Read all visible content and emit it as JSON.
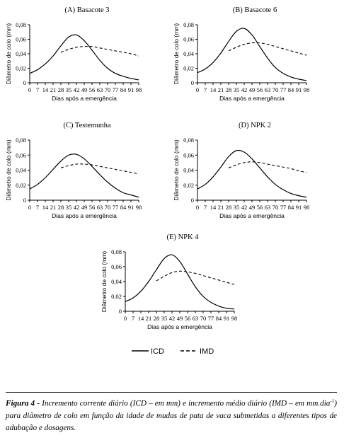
{
  "chart_data": [
    {
      "type": "line",
      "title": "(A) Basacote 3",
      "xlabel": "Dias após a emergência",
      "ylabel": "Diâmetro de colo (mm)",
      "ylim": [
        0,
        0.08
      ],
      "yticks": [
        "0",
        "0,02",
        "0,04",
        "0,06",
        "0,08"
      ],
      "xticks": [
        "0",
        "7",
        "14",
        "21",
        "28",
        "35",
        "42",
        "49",
        "56",
        "63",
        "70",
        "77",
        "84",
        "91",
        "98"
      ],
      "series": [
        {
          "name": "ICD",
          "style": "solid",
          "x": [
            0,
            7,
            14,
            21,
            28,
            35,
            42,
            49,
            56,
            63,
            70,
            77,
            84,
            91,
            98
          ],
          "y": [
            0.013,
            0.018,
            0.026,
            0.037,
            0.051,
            0.063,
            0.066,
            0.058,
            0.045,
            0.031,
            0.02,
            0.013,
            0.009,
            0.006,
            0.004
          ]
        },
        {
          "name": "IMD",
          "style": "dashed",
          "x": [
            28,
            35,
            42,
            49,
            56,
            63,
            70,
            77,
            84,
            91,
            98
          ],
          "y": [
            0.042,
            0.046,
            0.049,
            0.05,
            0.05,
            0.048,
            0.046,
            0.044,
            0.042,
            0.04,
            0.037
          ]
        }
      ]
    },
    {
      "type": "line",
      "title": "(B) Basacote 6",
      "xlabel": "Dias após a emergência",
      "ylabel": "Diâmetro de colo (mm)",
      "ylim": [
        0,
        0.08
      ],
      "yticks": [
        "0",
        "0,02",
        "0,04",
        "0,06",
        "0,08"
      ],
      "xticks": [
        "0",
        "7",
        "14",
        "21",
        "28",
        "35",
        "42",
        "49",
        "56",
        "63",
        "70",
        "77",
        "84",
        "91",
        "98"
      ],
      "series": [
        {
          "name": "ICD",
          "style": "solid",
          "x": [
            0,
            7,
            14,
            21,
            28,
            35,
            42,
            49,
            56,
            63,
            70,
            77,
            84,
            91,
            98
          ],
          "y": [
            0.014,
            0.019,
            0.028,
            0.041,
            0.057,
            0.071,
            0.075,
            0.066,
            0.05,
            0.034,
            0.021,
            0.013,
            0.008,
            0.005,
            0.003
          ]
        },
        {
          "name": "IMD",
          "style": "dashed",
          "x": [
            28,
            35,
            42,
            49,
            56,
            63,
            70,
            77,
            84,
            91,
            98
          ],
          "y": [
            0.044,
            0.049,
            0.053,
            0.055,
            0.055,
            0.053,
            0.05,
            0.047,
            0.044,
            0.041,
            0.038
          ]
        }
      ]
    },
    {
      "type": "line",
      "title": "(C) Testemunha",
      "xlabel": "Dias após a emergência",
      "ylabel": "Diâmetro de colo (mm)",
      "ylim": [
        0,
        0.08
      ],
      "yticks": [
        "0",
        "0,02",
        "0,04",
        "0,06",
        "0,08"
      ],
      "xticks": [
        "0",
        "7",
        "14",
        "21",
        "28",
        "35",
        "42",
        "49",
        "56",
        "63",
        "70",
        "77",
        "84",
        "91",
        "98"
      ],
      "series": [
        {
          "name": "ICD",
          "style": "solid",
          "x": [
            0,
            7,
            14,
            21,
            28,
            35,
            42,
            49,
            56,
            63,
            70,
            77,
            84,
            91,
            98
          ],
          "y": [
            0.015,
            0.021,
            0.03,
            0.041,
            0.052,
            0.06,
            0.061,
            0.055,
            0.045,
            0.034,
            0.024,
            0.016,
            0.01,
            0.007,
            0.004
          ]
        },
        {
          "name": "IMD",
          "style": "dashed",
          "x": [
            28,
            35,
            42,
            49,
            56,
            63,
            70,
            77,
            84,
            91,
            98
          ],
          "y": [
            0.043,
            0.046,
            0.048,
            0.048,
            0.047,
            0.045,
            0.043,
            0.041,
            0.039,
            0.037,
            0.035
          ]
        }
      ]
    },
    {
      "type": "line",
      "title": "(D) NPK 2",
      "xlabel": "Dias após a emergência",
      "ylabel": "Diâmetro de colo (mm)",
      "ylim": [
        0,
        0.08
      ],
      "yticks": [
        "0",
        "0,02",
        "0,04",
        "0,06",
        "0,08"
      ],
      "xticks": [
        "0",
        "7",
        "14",
        "21",
        "28",
        "35",
        "42",
        "49",
        "56",
        "63",
        "70",
        "77",
        "84",
        "91",
        "98"
      ],
      "series": [
        {
          "name": "ICD",
          "style": "solid",
          "x": [
            0,
            7,
            14,
            21,
            28,
            35,
            42,
            49,
            56,
            63,
            70,
            77,
            84,
            91,
            98
          ],
          "y": [
            0.015,
            0.021,
            0.031,
            0.044,
            0.058,
            0.066,
            0.064,
            0.055,
            0.043,
            0.031,
            0.021,
            0.014,
            0.009,
            0.006,
            0.004
          ]
        },
        {
          "name": "IMD",
          "style": "dashed",
          "x": [
            28,
            35,
            42,
            49,
            56,
            63,
            70,
            77,
            84,
            91,
            98
          ],
          "y": [
            0.043,
            0.047,
            0.05,
            0.051,
            0.05,
            0.048,
            0.046,
            0.044,
            0.042,
            0.039,
            0.037
          ]
        }
      ]
    },
    {
      "type": "line",
      "title": "(E) NPK 4",
      "xlabel": "Dias após a emergência",
      "ylabel": "Diâmetro de colo (mm)",
      "ylim": [
        0,
        0.08
      ],
      "yticks": [
        "0",
        "0,02",
        "0,04",
        "0,06",
        "0,08"
      ],
      "xticks": [
        "0",
        "7",
        "14",
        "21",
        "28",
        "35",
        "42",
        "49",
        "56",
        "63",
        "70",
        "77",
        "84",
        "91",
        "98"
      ],
      "series": [
        {
          "name": "ICD",
          "style": "solid",
          "x": [
            0,
            7,
            14,
            21,
            28,
            35,
            42,
            49,
            56,
            63,
            70,
            77,
            84,
            91,
            98
          ],
          "y": [
            0.013,
            0.018,
            0.027,
            0.04,
            0.056,
            0.071,
            0.076,
            0.067,
            0.05,
            0.033,
            0.02,
            0.012,
            0.007,
            0.004,
            0.003
          ]
        },
        {
          "name": "IMD",
          "style": "dashed",
          "x": [
            28,
            35,
            42,
            49,
            56,
            63,
            70,
            77,
            84,
            91,
            98
          ],
          "y": [
            0.041,
            0.047,
            0.052,
            0.054,
            0.053,
            0.051,
            0.048,
            0.045,
            0.042,
            0.039,
            0.036
          ]
        }
      ]
    }
  ],
  "legend": {
    "items": [
      {
        "label": "ICD",
        "style": "solid"
      },
      {
        "label": "IMD",
        "style": "dashed"
      }
    ]
  },
  "caption": {
    "label": "Figura 4",
    "text_before_sup": " - Incremento corrente diário (ICD – em mm) e incremento médio diário (IMD – em mm.dia",
    "sup": "-1",
    "text_after_sup": ") para diâmetro de colo em função da idade de mudas de pata de vaca submetidas a diferentes tipos de adubação e dosagens."
  }
}
